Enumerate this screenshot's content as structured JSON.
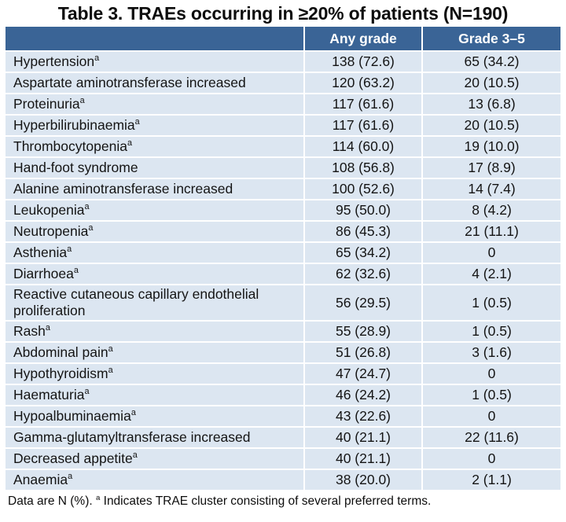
{
  "title": "Table 3. TRAEs occurring in ≥20% of patients (N=190)",
  "colors": {
    "header_bg": "#3A6496",
    "header_text": "#FFFFFF",
    "row_bg": "#DCE6F1",
    "separator": "#FFFFFF",
    "body_text": "#141414"
  },
  "table": {
    "columns": [
      "",
      "Any grade",
      "Grade 3–5"
    ],
    "rows": [
      {
        "label": "Hypertension",
        "sup": true,
        "any_grade": "138 (72.6)",
        "grade_3_5": "65 (34.2)"
      },
      {
        "label": "Aspartate aminotransferase increased",
        "sup": false,
        "any_grade": "120 (63.2)",
        "grade_3_5": "20 (10.5)"
      },
      {
        "label": "Proteinuria",
        "sup": true,
        "any_grade": "117 (61.6)",
        "grade_3_5": "13 (6.8)"
      },
      {
        "label": "Hyperbilirubinaemia",
        "sup": true,
        "any_grade": "117 (61.6)",
        "grade_3_5": "20 (10.5)"
      },
      {
        "label": "Thrombocytopenia",
        "sup": true,
        "any_grade": "114 (60.0)",
        "grade_3_5": "19 (10.0)"
      },
      {
        "label": "Hand-foot syndrome",
        "sup": false,
        "any_grade": "108 (56.8)",
        "grade_3_5": "17 (8.9)"
      },
      {
        "label": "Alanine aminotransferase increased",
        "sup": false,
        "any_grade": "100 (52.6)",
        "grade_3_5": "14 (7.4)"
      },
      {
        "label": "Leukopenia",
        "sup": true,
        "any_grade": "95 (50.0)",
        "grade_3_5": "8 (4.2)"
      },
      {
        "label": "Neutropenia",
        "sup": true,
        "any_grade": "86 (45.3)",
        "grade_3_5": "21 (11.1)"
      },
      {
        "label": "Asthenia",
        "sup": true,
        "any_grade": "65 (34.2)",
        "grade_3_5": "0"
      },
      {
        "label": "Diarrhoea",
        "sup": true,
        "any_grade": "62 (32.6)",
        "grade_3_5": "4 (2.1)"
      },
      {
        "label": "Reactive cutaneous capillary endothelial proliferation",
        "sup": false,
        "any_grade": "56 (29.5)",
        "grade_3_5": "1 (0.5)"
      },
      {
        "label": "Rash",
        "sup": true,
        "any_grade": "55 (28.9)",
        "grade_3_5": "1 (0.5)"
      },
      {
        "label": "Abdominal pain",
        "sup": true,
        "any_grade": "51 (26.8)",
        "grade_3_5": "3 (1.6)"
      },
      {
        "label": "Hypothyroidism",
        "sup": true,
        "any_grade": "47 (24.7)",
        "grade_3_5": "0"
      },
      {
        "label": "Haematuria",
        "sup": true,
        "any_grade": "46 (24.2)",
        "grade_3_5": "1 (0.5)"
      },
      {
        "label": "Hypoalbuminaemia",
        "sup": true,
        "any_grade": "43 (22.6)",
        "grade_3_5": "0"
      },
      {
        "label": "Gamma-glutamyltransferase increased",
        "sup": false,
        "any_grade": "40 (21.1)",
        "grade_3_5": "22 (11.6)"
      },
      {
        "label": "Decreased appetite",
        "sup": true,
        "any_grade": "40 (21.1)",
        "grade_3_5": "0"
      },
      {
        "label": "Anaemia",
        "sup": true,
        "any_grade": "38 (20.0)",
        "grade_3_5": "2 (1.1)"
      }
    ]
  },
  "footnote": {
    "prefix": "Data are N (%). ",
    "sup": "a",
    "suffix": " Indicates TRAE cluster consisting of several preferred terms."
  }
}
